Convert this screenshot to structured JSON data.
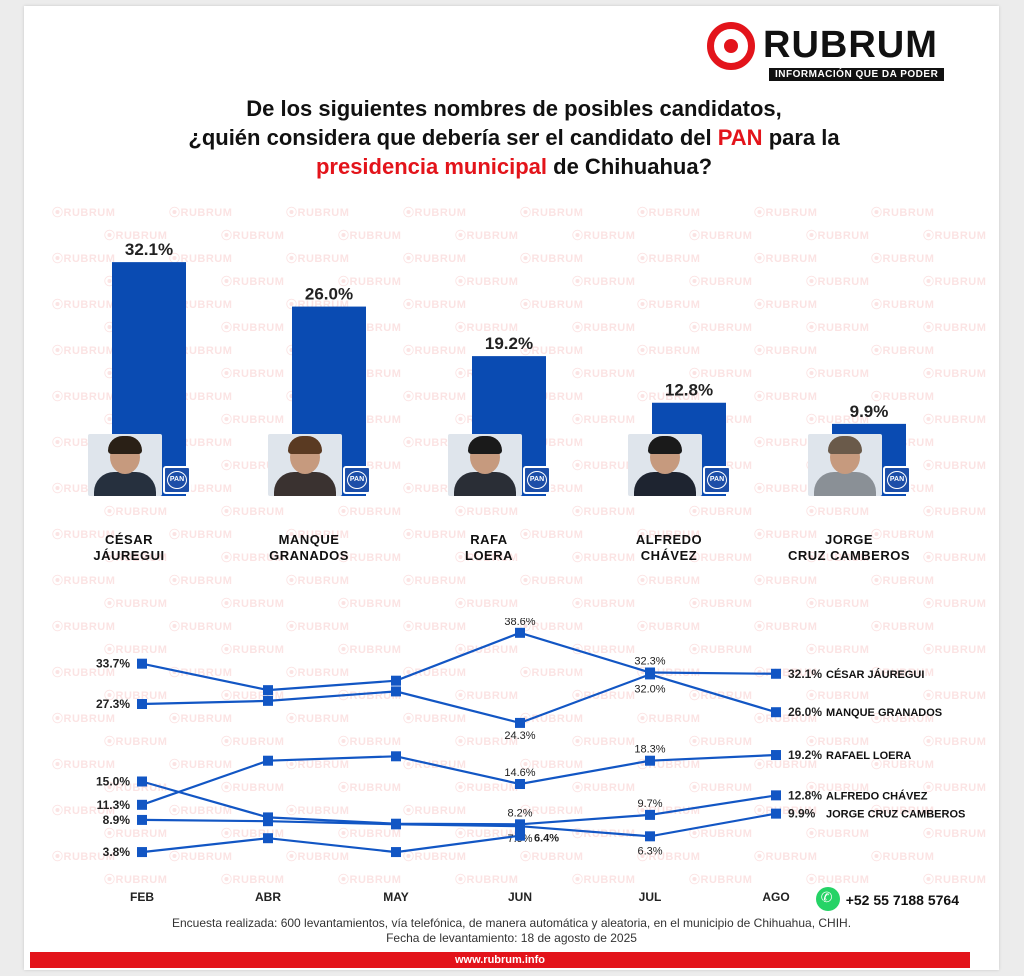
{
  "logo": {
    "name": "RUBRUM",
    "tagline": "INFORMACIÓN QUE DA PODER",
    "watermark_text": "RUBRUM"
  },
  "question": {
    "line1": "De los siguientes nombres de posibles candidatos,",
    "line2_pre": "¿quién considera que debería ser el candidato del ",
    "line2_hl": "PAN",
    "line2_post": " para la",
    "line3_hl": "presidencia municipal",
    "line3_post": " de Chihuahua?"
  },
  "colors": {
    "accent": "#e3141b",
    "bar": "#0a4bb2",
    "line": "#1256c4",
    "pan_badge": "#1c4ea8"
  },
  "pan_badge_label": "PAN",
  "chart_data": [
    {
      "type": "bar",
      "categories": [
        "CÉSAR JÁUREGUI",
        "MANQUE GRANADOS",
        "RAFA LOERA",
        "ALFREDO CHÁVEZ",
        "JORGE CRUZ CAMBEROS"
      ],
      "label_lines": [
        [
          "CÉSAR",
          "JÁUREGUI"
        ],
        [
          "MANQUE",
          "GRANADOS"
        ],
        [
          "RAFA",
          "LOERA"
        ],
        [
          "ALFREDO",
          "CHÁVEZ"
        ],
        [
          "JORGE",
          "CRUZ CAMBEROS"
        ]
      ],
      "values": [
        32.1,
        26.0,
        19.2,
        12.8,
        9.9
      ],
      "value_labels": [
        "32.1%",
        "26.0%",
        "19.2%",
        "12.8%",
        "9.9%"
      ],
      "ylim": [
        0,
        35
      ]
    },
    {
      "type": "line",
      "x": [
        "FEB",
        "ABR",
        "MAY",
        "JUN",
        "JUL",
        "AGO"
      ],
      "ylim": [
        0,
        40
      ],
      "series": [
        {
          "name": "CÉSAR JÁUREGUI",
          "values": [
            33.7,
            29.5,
            31.0,
            38.6,
            32.3,
            32.1
          ],
          "labels": [
            "33.7%",
            null,
            null,
            "38.6%",
            "32.3%",
            "32.1%"
          ]
        },
        {
          "name": "MANQUE GRANADOS",
          "values": [
            27.3,
            27.8,
            29.3,
            24.3,
            32.0,
            26.0
          ],
          "labels": [
            "27.3%",
            null,
            null,
            "24.3%",
            "32.0%",
            "26.0%"
          ]
        },
        {
          "name": "RAFAEL LOERA",
          "values": [
            11.3,
            18.3,
            19.0,
            14.6,
            18.3,
            19.2
          ],
          "labels": [
            "11.3%",
            null,
            null,
            "14.6%",
            "18.3%",
            "19.2%"
          ]
        },
        {
          "name": "ALFREDO CHÁVEZ",
          "values": [
            15.0,
            9.3,
            8.3,
            8.2,
            9.7,
            12.8
          ],
          "labels": [
            "15.0%",
            null,
            null,
            "8.2%",
            "9.7%",
            "12.8%"
          ]
        },
        {
          "name": "JORGE CRUZ CAMBEROS",
          "values": [
            8.9,
            8.7,
            8.2,
            7.9,
            6.3,
            9.9
          ],
          "labels": [
            "8.9%",
            null,
            null,
            "7.9%",
            "6.3%",
            "9.9%"
          ]
        },
        {
          "name": "",
          "values": [
            3.8,
            6.0,
            3.8,
            6.4,
            null,
            null
          ],
          "labels": [
            "3.8%",
            null,
            null,
            "6.4%",
            null,
            null
          ]
        }
      ]
    }
  ],
  "footer": {
    "line1": "Encuesta realizada: 600 levantamientos, vía telefónica, de manera automática y aleatoria, en el municipio de Chihuahua, CHIH.",
    "line2": "Fecha de levantamiento: 18 de agosto de 2025",
    "phone": "+52 55 7188 5764",
    "url": "www.rubrum.info"
  }
}
